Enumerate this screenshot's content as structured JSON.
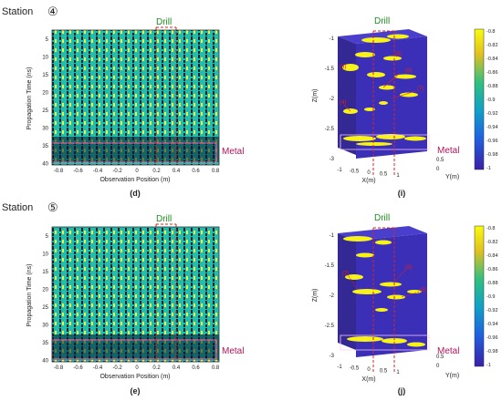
{
  "stations": [
    {
      "label": "Station",
      "number": "④",
      "drill_label": "Drill",
      "metal_label": "Metal",
      "left_panel_letter": "(d)",
      "right_panel_letter": "(i)",
      "right_annotations": [
        "(5)",
        "(3)",
        "(6)",
        "(7)",
        "(4)"
      ]
    },
    {
      "label": "Station",
      "number": "⑤",
      "drill_label": "Drill",
      "metal_label": "Metal",
      "left_panel_letter": "(e)",
      "right_panel_letter": "(j)",
      "right_annotations": [
        "(8)",
        "(7)",
        "(9)"
      ]
    }
  ],
  "left_axes": {
    "ylabel": "Propagation Time (ns)",
    "xlabel": "Observation Position (m)",
    "yticks": [
      "5",
      "10",
      "15",
      "20",
      "25",
      "30",
      "35",
      "40"
    ],
    "xticks": [
      "-0.8",
      "-0.6",
      "-0.4",
      "-0.2",
      "0",
      "0.2",
      "0.4",
      "0.6",
      "0.8"
    ]
  },
  "right_axes": {
    "zlabel": "Z(m)",
    "xlabel": "X(m)",
    "ylabel": "Y(m)",
    "zticks": [
      "-1",
      "-1.5",
      "-2",
      "-2.5",
      "-3"
    ],
    "xticks": [
      "-1",
      "-0.5",
      "0",
      "0.5",
      "1"
    ],
    "yticks": [
      "0.5",
      "0"
    ]
  },
  "colorbar": {
    "ticks": [
      "-0.8",
      "-0.82",
      "-0.84",
      "-0.86",
      "-0.88",
      "-0.9",
      "-0.92",
      "-0.94",
      "-0.96",
      "-0.98",
      "-1"
    ]
  },
  "colors": {
    "radar_bg": "#1fbfae",
    "radar_dark": "#0a1a30",
    "radar_yellow": "#f2f03a",
    "volume_bg": "#3b2fb8",
    "volume_yellow": "#f7f21a",
    "drill_green": "#1f8f1f",
    "metal_magenta": "#b0155b",
    "marker_red": "#e02020"
  }
}
